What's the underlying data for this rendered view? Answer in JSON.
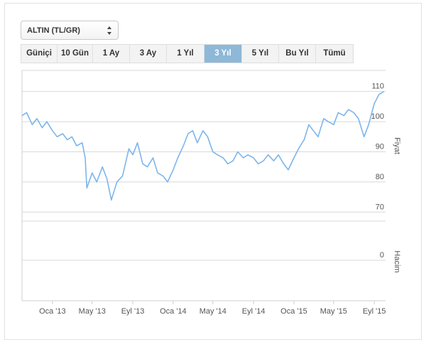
{
  "selector": {
    "value": "ALTIN (TL/GR)"
  },
  "ranges": [
    {
      "label": "Güniçi"
    },
    {
      "label": "10 Gün"
    },
    {
      "label": "1 Ay"
    },
    {
      "label": "3 Ay"
    },
    {
      "label": "1 Yıl"
    },
    {
      "label": "3 Yıl",
      "active": true
    },
    {
      "label": "5 Yıl"
    },
    {
      "label": "Bu Yıl"
    },
    {
      "label": "Tümü"
    }
  ],
  "colors": {
    "line": "#7cb5ec",
    "active_button": "#8eb8d8",
    "grid": "#d8d8d8"
  },
  "chart_data": {
    "type": "line",
    "grid": true,
    "x_tick_labels": [
      "Oca '13",
      "May '13",
      "Eyl '13",
      "Oca '14",
      "May '14",
      "Eyl '14",
      "Oca '15",
      "May '15",
      "Eyl '15"
    ],
    "price_axis": {
      "title": "Fiyat",
      "ticks": [
        70,
        80,
        90,
        100,
        110
      ],
      "ylim": [
        67,
        117
      ]
    },
    "volume_axis": {
      "title": "Hacim",
      "ticks": [
        0
      ]
    },
    "series": [
      {
        "x": [
          "2012-10-01",
          "2012-10-15",
          "2012-11-01",
          "2012-11-15",
          "2012-12-01",
          "2012-12-15",
          "2013-01-01",
          "2013-01-15",
          "2013-02-01",
          "2013-02-15",
          "2013-03-01",
          "2013-03-15",
          "2013-04-01",
          "2013-04-10",
          "2013-04-15",
          "2013-05-01",
          "2013-05-15",
          "2013-06-01",
          "2013-06-15",
          "2013-06-28",
          "2013-07-15",
          "2013-08-01",
          "2013-08-20",
          "2013-09-01",
          "2013-09-15",
          "2013-10-01",
          "2013-10-15",
          "2013-11-01",
          "2013-11-15",
          "2013-12-01",
          "2013-12-15",
          "2014-01-01",
          "2014-01-15",
          "2014-02-01",
          "2014-02-15",
          "2014-03-01",
          "2014-03-15",
          "2014-04-01",
          "2014-04-15",
          "2014-05-01",
          "2014-05-15",
          "2014-06-01",
          "2014-06-15",
          "2014-07-01",
          "2014-07-15",
          "2014-08-01",
          "2014-08-15",
          "2014-09-01",
          "2014-09-15",
          "2014-10-01",
          "2014-10-15",
          "2014-11-01",
          "2014-11-15",
          "2014-12-01",
          "2014-12-15",
          "2015-01-01",
          "2015-01-15",
          "2015-02-01",
          "2015-02-15",
          "2015-03-01",
          "2015-03-15",
          "2015-04-01",
          "2015-04-15",
          "2015-05-01",
          "2015-05-15",
          "2015-06-01",
          "2015-06-15",
          "2015-07-01",
          "2015-07-15",
          "2015-08-01",
          "2015-08-15",
          "2015-09-01",
          "2015-09-15",
          "2015-09-30"
        ],
        "y": [
          102,
          103,
          99,
          101,
          98,
          100,
          97,
          95,
          96,
          94,
          95,
          92,
          93,
          88,
          78,
          83,
          80,
          85,
          81,
          74,
          80,
          82,
          91,
          89,
          93,
          86,
          85,
          88,
          83,
          82,
          80,
          84,
          88,
          92,
          96,
          97,
          93,
          97,
          95,
          90,
          89,
          88,
          86,
          87,
          90,
          88,
          89,
          88,
          86,
          87,
          89,
          87,
          89,
          86,
          84,
          88,
          91,
          94,
          99,
          97,
          95,
          101,
          100,
          99,
          103,
          102,
          104,
          103,
          101,
          95,
          99,
          106,
          109,
          110
        ]
      }
    ]
  }
}
